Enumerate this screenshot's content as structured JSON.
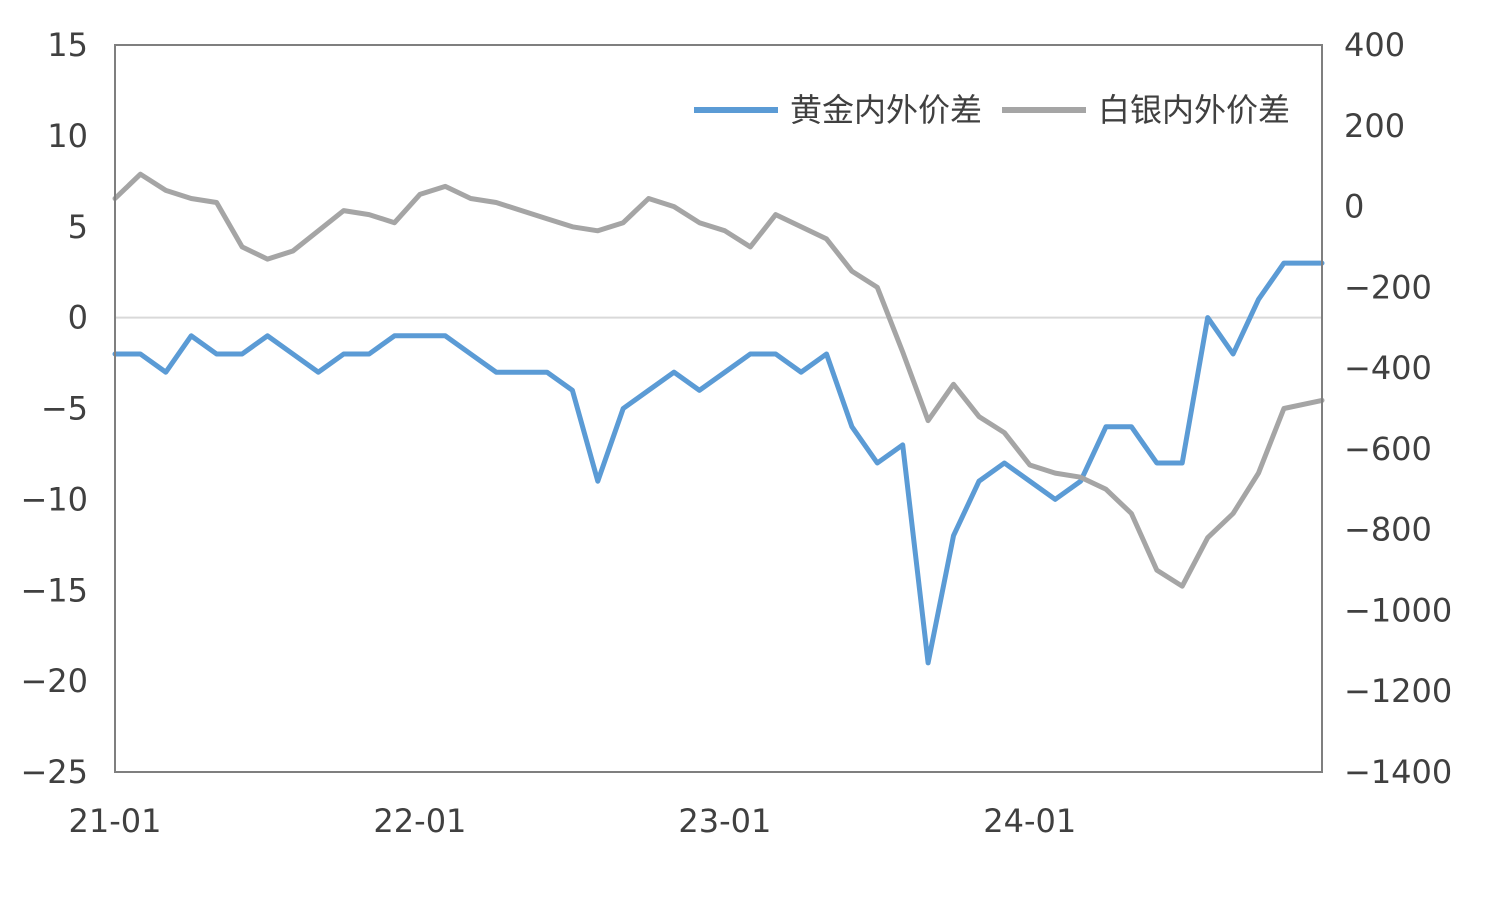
{
  "chart_data": {
    "type": "line",
    "title": "",
    "xlabel": "",
    "ylabel_left": "",
    "ylabel_right": "",
    "x_tick_labels": [
      "21-01",
      "22-01",
      "23-01",
      "24-01"
    ],
    "x_tick_months": [
      0,
      12,
      24,
      36
    ],
    "x_range_months": [
      0,
      47.5
    ],
    "y_left_range": [
      -25,
      15
    ],
    "y_left_ticks": [
      15,
      10,
      5,
      0,
      -5,
      -10,
      -15,
      -20,
      -25
    ],
    "y_left_tick_labels": [
      "15",
      "10",
      "5",
      "0",
      "−5",
      "−10",
      "−15",
      "−20",
      "−25"
    ],
    "y_right_range": [
      -1400,
      400
    ],
    "y_right_ticks": [
      400,
      200,
      0,
      -200,
      -400,
      -600,
      -800,
      -1000,
      -1200,
      -1400
    ],
    "y_right_tick_labels": [
      "400",
      "200",
      "0",
      "−200",
      "−400",
      "−600",
      "−800",
      "−1000",
      "−1200",
      "−1400"
    ],
    "zero_line": true,
    "grid": false,
    "legend_position": "top-right",
    "series": [
      {
        "name": "黄金内外价差",
        "axis": "left",
        "color": "#5B9BD5",
        "x_months": [
          0,
          1,
          2,
          3,
          4,
          5,
          6,
          7,
          8,
          9,
          10,
          11,
          12,
          13,
          14,
          15,
          16,
          17,
          18,
          19,
          20,
          21,
          22,
          23,
          24,
          25,
          26,
          27,
          28,
          29,
          30,
          31,
          32,
          33,
          34,
          35,
          36,
          37,
          38,
          39,
          40,
          41,
          42,
          43,
          44,
          45,
          46,
          47.5
        ],
        "values": [
          -2,
          -2,
          -3,
          -1,
          -2,
          -2,
          -1,
          -2,
          -3,
          -2,
          -2,
          -1,
          -1,
          -1,
          -2,
          -3,
          -3,
          -3,
          -4,
          -9,
          -5,
          -4,
          -3,
          -4,
          -3,
          -2,
          -2,
          -3,
          -2,
          -6,
          -8,
          -7,
          -19,
          -12,
          -9,
          -8,
          -9,
          -10,
          -9,
          -6,
          -6,
          -8,
          -8,
          0,
          -2,
          1,
          3,
          3
        ]
      },
      {
        "name": "白银内外价差",
        "axis": "right",
        "color": "#A5A5A5",
        "x_months": [
          0,
          1,
          2,
          3,
          4,
          5,
          6,
          7,
          8,
          9,
          10,
          11,
          12,
          13,
          14,
          15,
          16,
          17,
          18,
          19,
          20,
          21,
          22,
          23,
          24,
          25,
          26,
          27,
          28,
          29,
          30,
          31,
          32,
          33,
          34,
          35,
          36,
          37,
          38,
          39,
          40,
          41,
          42,
          43,
          44,
          45,
          46,
          47.5
        ],
        "values": [
          20,
          80,
          40,
          20,
          10,
          -100,
          -130,
          -110,
          -60,
          -10,
          -20,
          -40,
          30,
          50,
          20,
          10,
          -10,
          -30,
          -50,
          -60,
          -40,
          20,
          0,
          -40,
          -60,
          -100,
          -20,
          -50,
          -80,
          -160,
          -200,
          -360,
          -530,
          -440,
          -520,
          -560,
          -640,
          -660,
          -670,
          -700,
          -760,
          -900,
          -940,
          -820,
          -760,
          -660,
          -500,
          -480
        ]
      }
    ]
  }
}
